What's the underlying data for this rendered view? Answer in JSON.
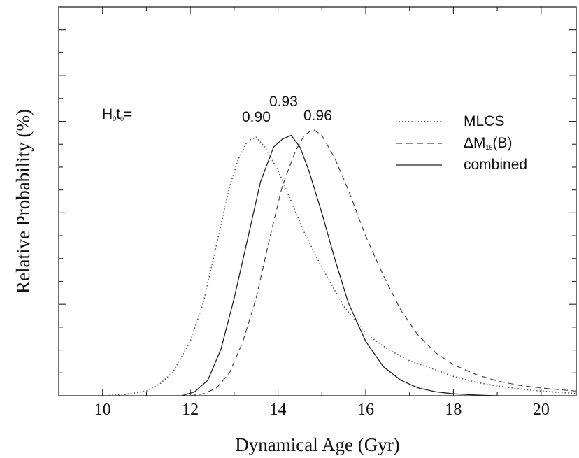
{
  "chart_data": {
    "type": "line",
    "title": "",
    "xlabel": "Dynamical Age (Gyr)",
    "ylabel": "Relative Probability (%)",
    "xlim": [
      9.0,
      20.8
    ],
    "ylim": [
      0,
      1.0
    ],
    "x_ticks": [
      10,
      12,
      14,
      16,
      18,
      20
    ],
    "y_tick_labels_shown": false,
    "grid": false,
    "legend_position": "top-right",
    "series": [
      {
        "name": "MLCS",
        "style": "dotted",
        "x": [
          10.0,
          10.5,
          11.0,
          11.3,
          11.6,
          12.0,
          12.3,
          12.6,
          12.9,
          13.1,
          13.3,
          13.5,
          13.7,
          14.0,
          14.3,
          14.6,
          15.0,
          15.5,
          16.0,
          16.5,
          17.0,
          17.5,
          18.0,
          18.5,
          19.0,
          19.5,
          20.0,
          20.5,
          20.8
        ],
        "y": [
          0.0,
          0.003,
          0.012,
          0.03,
          0.06,
          0.14,
          0.24,
          0.39,
          0.54,
          0.61,
          0.655,
          0.665,
          0.64,
          0.58,
          0.5,
          0.42,
          0.33,
          0.23,
          0.16,
          0.12,
          0.09,
          0.07,
          0.05,
          0.035,
          0.025,
          0.018,
          0.012,
          0.008,
          0.006
        ]
      },
      {
        "name": "ΔM15(B)",
        "style": "dashed",
        "x": [
          12.0,
          12.3,
          12.6,
          12.9,
          13.2,
          13.5,
          13.8,
          14.1,
          14.4,
          14.6,
          14.8,
          15.0,
          15.3,
          15.6,
          16.0,
          16.4,
          16.8,
          17.2,
          17.6,
          18.0,
          18.5,
          19.0,
          19.5,
          20.0,
          20.5,
          20.8
        ],
        "y": [
          0.0,
          0.005,
          0.02,
          0.06,
          0.14,
          0.25,
          0.4,
          0.54,
          0.63,
          0.67,
          0.685,
          0.67,
          0.61,
          0.53,
          0.41,
          0.31,
          0.22,
          0.155,
          0.11,
          0.08,
          0.055,
          0.038,
          0.027,
          0.02,
          0.015,
          0.012
        ]
      },
      {
        "name": "combined",
        "style": "solid",
        "x": [
          11.8,
          12.1,
          12.4,
          12.7,
          13.0,
          13.3,
          13.6,
          13.9,
          14.1,
          14.3,
          14.5,
          14.7,
          15.0,
          15.3,
          15.6,
          16.0,
          16.4,
          16.8,
          17.2,
          17.6,
          18.0,
          18.5,
          19.0
        ],
        "y": [
          0.0,
          0.01,
          0.04,
          0.12,
          0.25,
          0.4,
          0.55,
          0.64,
          0.66,
          0.67,
          0.64,
          0.58,
          0.47,
          0.35,
          0.24,
          0.14,
          0.075,
          0.04,
          0.02,
          0.01,
          0.005,
          0.002,
          0.0
        ]
      }
    ],
    "legend": [
      {
        "label": "MLCS",
        "style": "dotted"
      },
      {
        "label_main": "ΔM",
        "label_sub": "15",
        "label_tail": "(B)",
        "style": "dashed"
      },
      {
        "label": "combined",
        "style": "solid"
      }
    ],
    "annotations": {
      "prefix_main": "H",
      "prefix_sub1": "0",
      "prefix_mid": "t",
      "prefix_sub2": "0",
      "prefix_tail": "=",
      "v1": "0.90",
      "v2": "0.93",
      "v3": "0.96"
    }
  }
}
